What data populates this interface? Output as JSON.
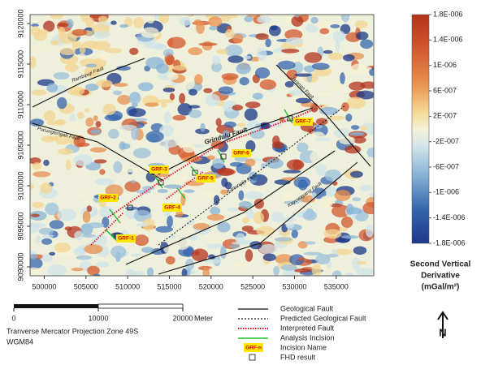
{
  "map": {
    "xlim": [
      498300,
      539500
    ],
    "ylim": [
      9088900,
      9121100
    ],
    "xticks": [
      500000,
      505000,
      510000,
      515000,
      520000,
      525000,
      530000,
      535000
    ],
    "yticks": [
      9090000,
      9095000,
      9100000,
      9105000,
      9110000,
      9115000,
      9120000
    ],
    "fault_labels": [
      "Rambipuji Fault",
      "Pucungtengah Fault",
      "Grindulu Fault",
      "Kanungijo Fault",
      "Kayuwayang Fault",
      "Jaranan Fault"
    ],
    "incision_labels": [
      "GRF-1",
      "GRF-2",
      "GRF-3",
      "GRF-4",
      "GRF-5",
      "GRF-6",
      "GRF-7"
    ]
  },
  "colorbar": {
    "title": [
      "Second Vertical",
      "Derivative",
      "(mGal/m²)"
    ],
    "ticks": [
      {
        "value": 1.8e-06,
        "label": "1.8E-006"
      },
      {
        "value": 1.4e-06,
        "label": "1.4E-006"
      },
      {
        "value": 1e-06,
        "label": "1E-006"
      },
      {
        "value": 6e-07,
        "label": "6E-007"
      },
      {
        "value": 2e-07,
        "label": "2E-007"
      },
      {
        "value": -2e-07,
        "label": "-2E-007"
      },
      {
        "value": -6e-07,
        "label": "-6E-007"
      },
      {
        "value": -1e-06,
        "label": "-1E-006"
      },
      {
        "value": -1.4e-06,
        "label": "-1.4E-006"
      },
      {
        "value": -1.8e-06,
        "label": "-1.8E-006"
      }
    ]
  },
  "scale_bar": {
    "ticks": [
      0,
      10000,
      20000
    ],
    "unit": "Meter",
    "projection": "Tranverse Mercator Projection Zone 49S",
    "datum": "WGM84"
  },
  "legend": {
    "items": [
      "Geological Fault",
      "Predicted Geological Fault",
      "Interpreted Fault",
      "Analysis Incision",
      "Incision Name",
      "FHD result"
    ],
    "symbol_text": "GRF-n"
  },
  "north": "N"
}
